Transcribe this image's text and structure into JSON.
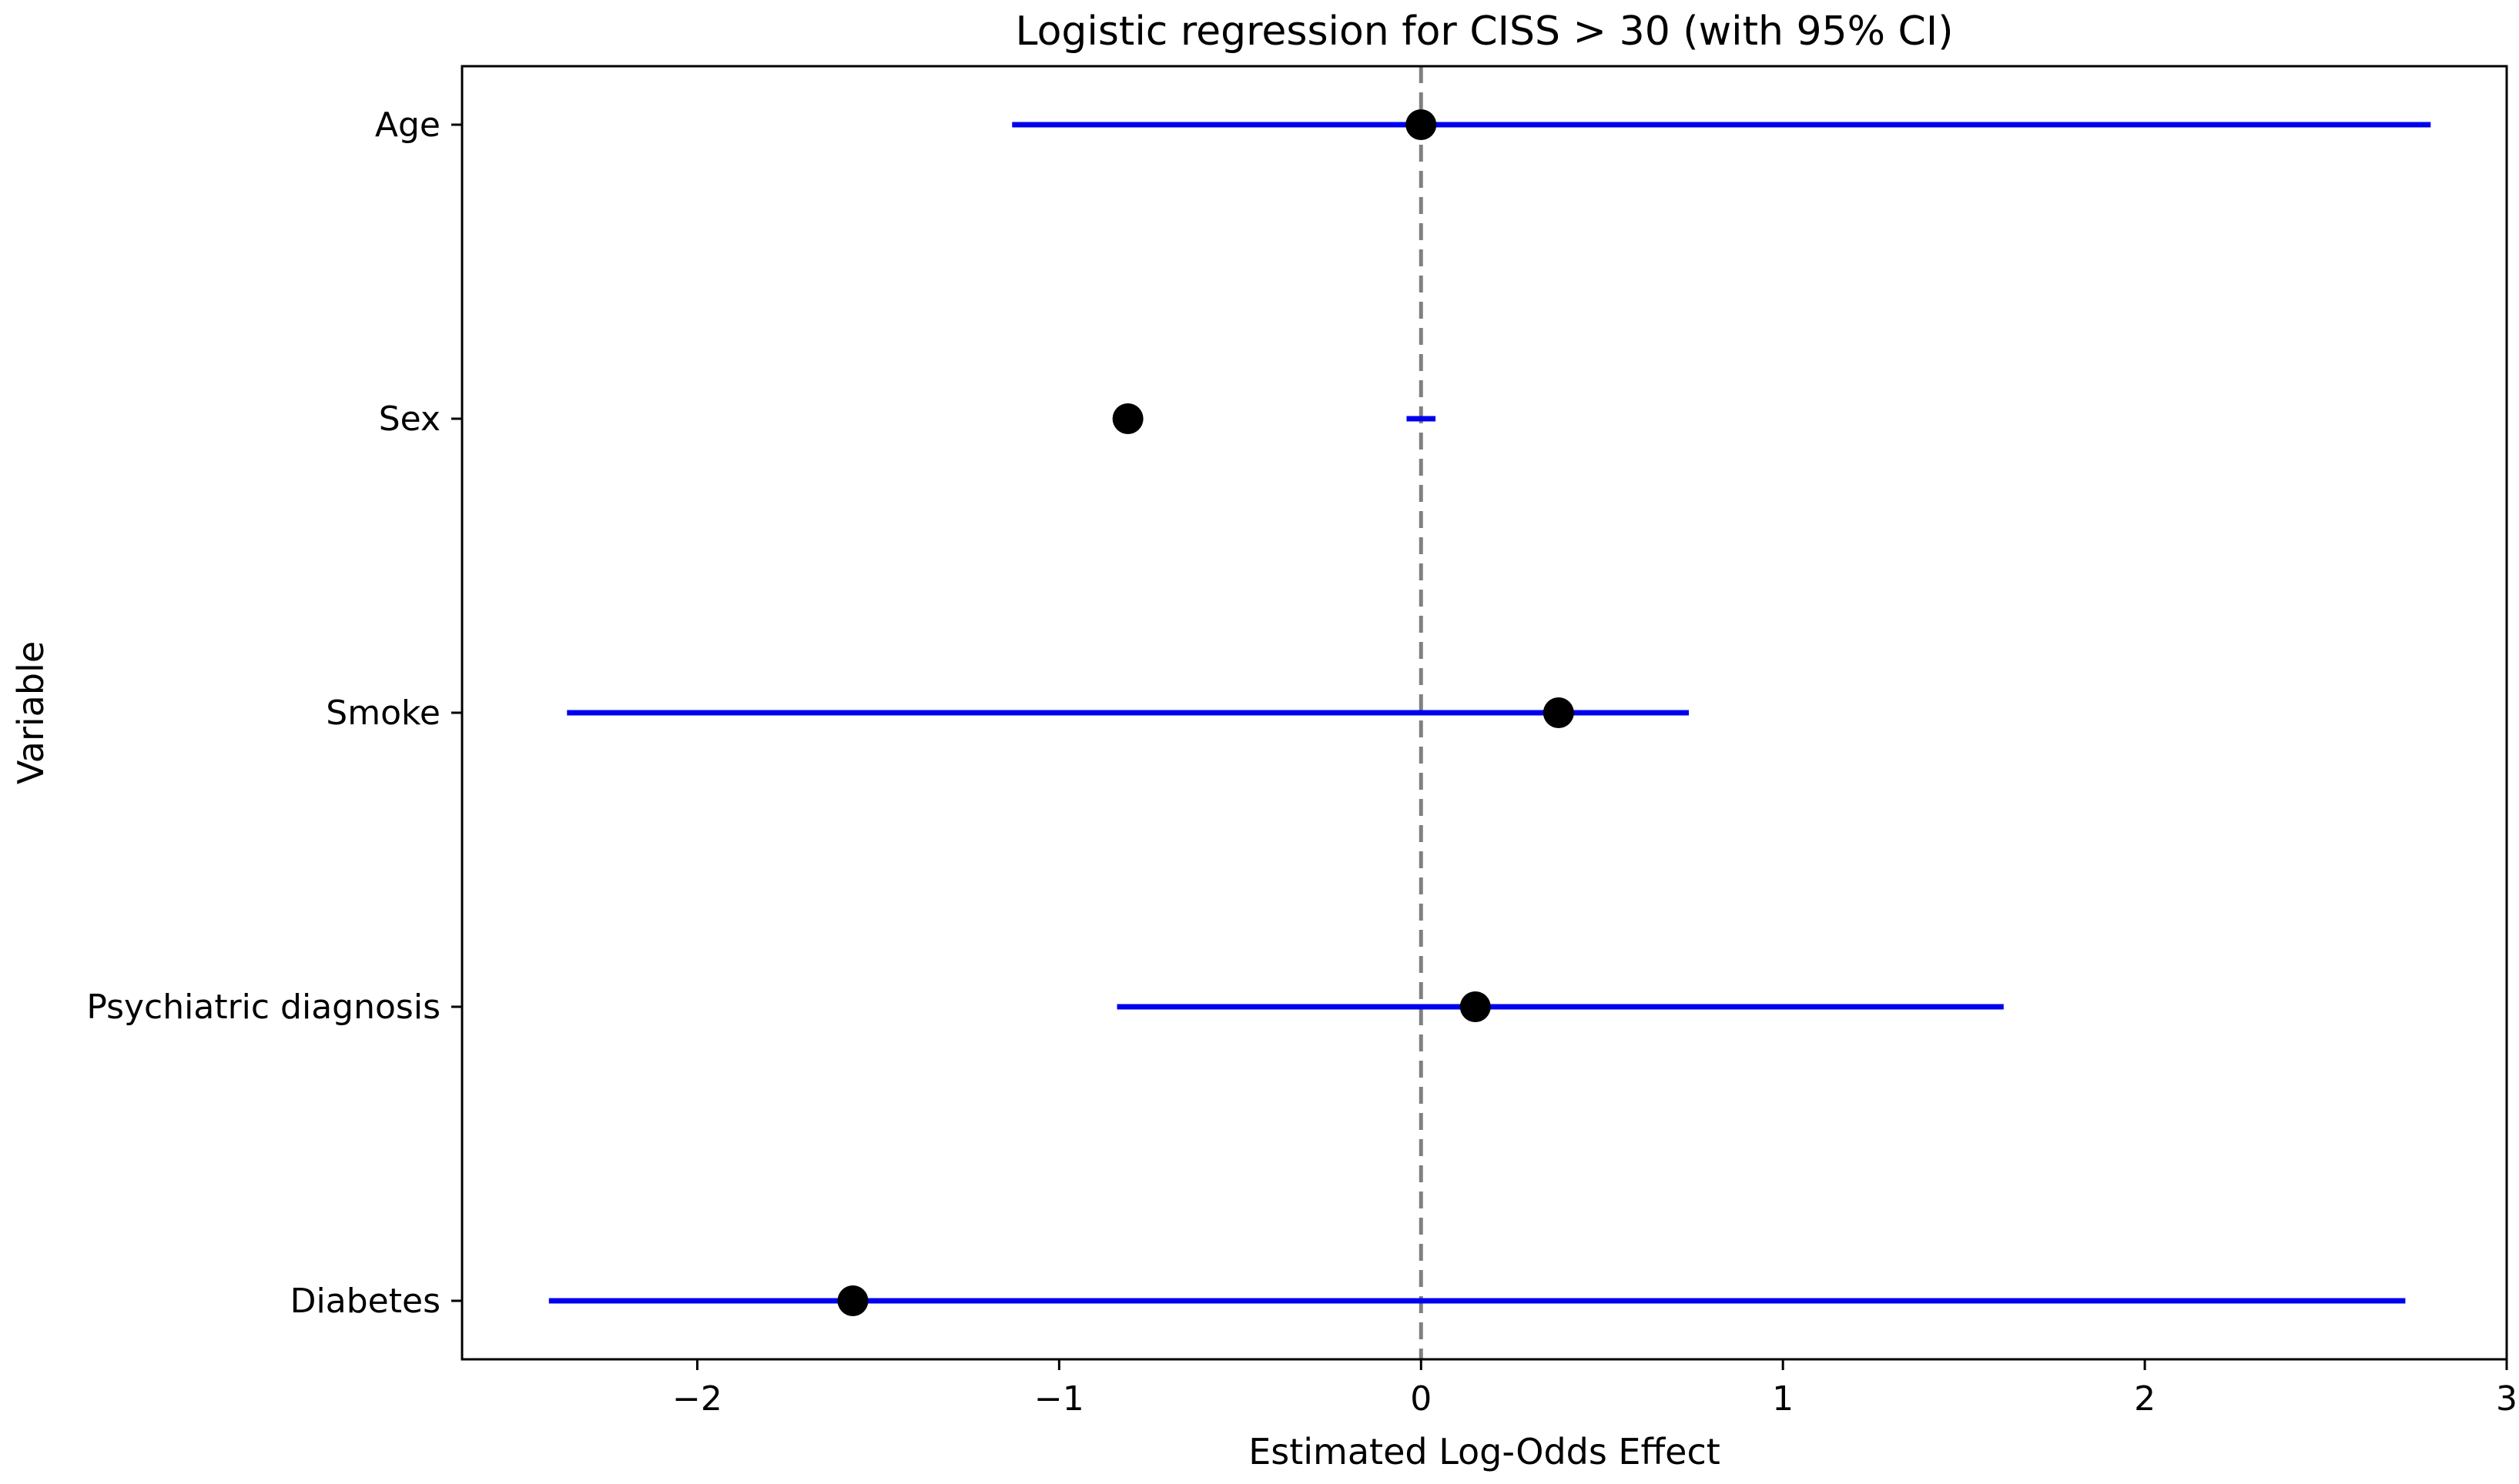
{
  "chart_data": {
    "type": "forest",
    "title": "Logistic regression for CISS > 30 (with 95% CI)",
    "xlabel": "Estimated Log-Odds Effect",
    "ylabel": "Variable",
    "xlim": [
      -2.65,
      3.0
    ],
    "xticks": [
      {
        "value": -2,
        "label": "−2"
      },
      {
        "value": -1,
        "label": "−1"
      },
      {
        "value": 0,
        "label": "0"
      },
      {
        "value": 1,
        "label": "1"
      },
      {
        "value": 2,
        "label": "2"
      },
      {
        "value": 3,
        "label": "3"
      }
    ],
    "reference_line": 0,
    "grid": false,
    "series": [
      {
        "variable": "Age",
        "estimate": 0.0,
        "ci_low": -1.13,
        "ci_high": 2.79
      },
      {
        "variable": "Sex",
        "estimate": -0.81,
        "ci_low": -0.04,
        "ci_high": 0.04
      },
      {
        "variable": "Smoke",
        "estimate": 0.38,
        "ci_low": -2.36,
        "ci_high": 0.74
      },
      {
        "variable": "Psychiatric diagnosis",
        "estimate": 0.15,
        "ci_low": -0.84,
        "ci_high": 1.61
      },
      {
        "variable": "Diabetes",
        "estimate": -1.57,
        "ci_low": -2.41,
        "ci_high": 2.72
      }
    ],
    "colors": {
      "ci_line": "#0000ee",
      "point": "#000000",
      "reference_line": "#808080",
      "frame": "#000000"
    }
  }
}
